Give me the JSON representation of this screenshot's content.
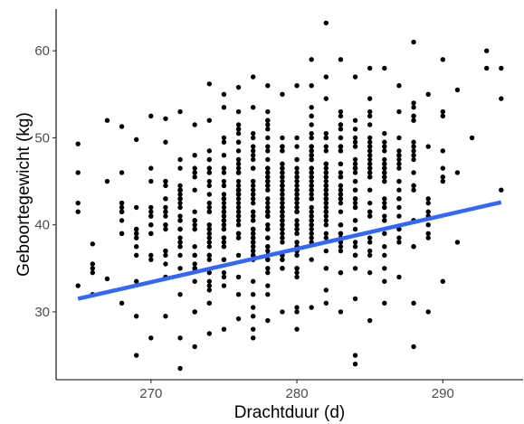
{
  "chart_data": {
    "type": "scatter",
    "title": "",
    "xlabel": "Drachtduur (d)",
    "ylabel": "Geboortegewicht (kg)",
    "xlim": [
      263.5,
      295.5
    ],
    "ylim": [
      22.2,
      64.8
    ],
    "x_ticks": [
      270,
      280,
      290
    ],
    "y_ticks": [
      30,
      40,
      50,
      60
    ],
    "grid": false,
    "legend": "none",
    "colors": {
      "points": "#000000",
      "regression_line": "#3366FF"
    },
    "regression_line": {
      "x": [
        265,
        294
      ],
      "y": [
        31.5,
        42.6
      ]
    },
    "point_columns": [
      {
        "x": 265,
        "y_min": 33,
        "y_max": 49.3,
        "n": 5,
        "extra": []
      },
      {
        "x": 266,
        "y_min": 32,
        "y_max": 37.8,
        "n": 5,
        "extra": []
      },
      {
        "x": 267,
        "y_min": 33.8,
        "y_max": 52,
        "n": 3,
        "extra": []
      },
      {
        "x": 268,
        "y_min": 31,
        "y_max": 51.3,
        "n": 12,
        "extra": []
      },
      {
        "x": 269,
        "y_min": 29.5,
        "y_max": 49.8,
        "n": 12,
        "extra": [
          25
        ]
      },
      {
        "x": 270,
        "y_min": 27,
        "y_max": 52.5,
        "n": 14,
        "extra": []
      },
      {
        "x": 271,
        "y_min": 29.5,
        "y_max": 52.2,
        "n": 20,
        "extra": []
      },
      {
        "x": 272,
        "y_min": 27,
        "y_max": 53,
        "n": 30,
        "extra": [
          23.5
        ]
      },
      {
        "x": 273,
        "y_min": 26,
        "y_max": 51.5,
        "n": 26,
        "extra": []
      },
      {
        "x": 274,
        "y_min": 27.5,
        "y_max": 56.2,
        "n": 36,
        "extra": []
      },
      {
        "x": 275,
        "y_min": 28,
        "y_max": 55,
        "n": 40,
        "extra": []
      },
      {
        "x": 276,
        "y_min": 29.2,
        "y_max": 55.8,
        "n": 48,
        "extra": []
      },
      {
        "x": 277,
        "y_min": 27,
        "y_max": 57,
        "n": 52,
        "extra": []
      },
      {
        "x": 278,
        "y_min": 29,
        "y_max": 56,
        "n": 55,
        "extra": []
      },
      {
        "x": 279,
        "y_min": 30,
        "y_max": 55,
        "n": 55,
        "extra": []
      },
      {
        "x": 280,
        "y_min": 28,
        "y_max": 56,
        "n": 52,
        "extra": []
      },
      {
        "x": 281,
        "y_min": 30.5,
        "y_max": 59,
        "n": 48,
        "extra": []
      },
      {
        "x": 282,
        "y_min": 31,
        "y_max": 57,
        "n": 45,
        "extra": [
          63.2
        ]
      },
      {
        "x": 283,
        "y_min": 30,
        "y_max": 59,
        "n": 42,
        "extra": []
      },
      {
        "x": 284,
        "y_min": 31.5,
        "y_max": 57,
        "n": 35,
        "extra": [
          25,
          24
        ]
      },
      {
        "x": 285,
        "y_min": 29,
        "y_max": 58,
        "n": 32,
        "extra": []
      },
      {
        "x": 286,
        "y_min": 31,
        "y_max": 58,
        "n": 30,
        "extra": []
      },
      {
        "x": 287,
        "y_min": 34,
        "y_max": 56,
        "n": 22,
        "extra": []
      },
      {
        "x": 288,
        "y_min": 31,
        "y_max": 61,
        "n": 20,
        "extra": [
          26
        ]
      },
      {
        "x": 289,
        "y_min": 30,
        "y_max": 55,
        "n": 10,
        "extra": []
      },
      {
        "x": 290,
        "y_min": 33.5,
        "y_max": 59,
        "n": 8,
        "extra": []
      },
      {
        "x": 291,
        "y_min": 38,
        "y_max": 55.5,
        "n": 3,
        "extra": []
      },
      {
        "x": 292,
        "y_min": 50,
        "y_max": 50,
        "n": 1,
        "extra": []
      },
      {
        "x": 293,
        "y_min": 58,
        "y_max": 60,
        "n": 2,
        "extra": []
      },
      {
        "x": 294,
        "y_min": 44,
        "y_max": 58,
        "n": 3,
        "extra": []
      }
    ]
  }
}
